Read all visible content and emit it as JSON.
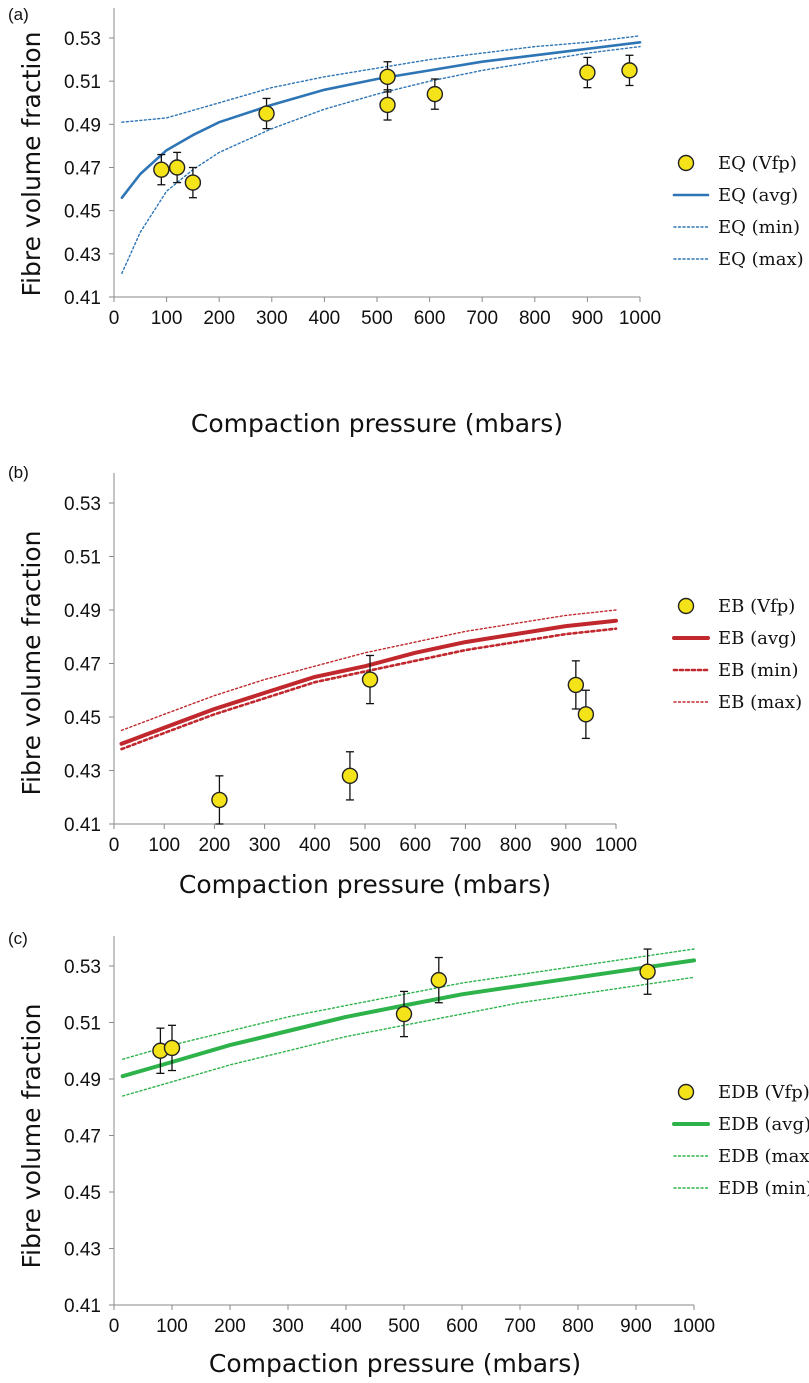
{
  "chart_data": [
    {
      "type": "scatter",
      "panel_label": "(a)",
      "xlabel": "Compaction pressure (mbars)",
      "ylabel": "Fibre volume fraction",
      "xlim": [
        0,
        1000
      ],
      "ylim": [
        0.41,
        0.53
      ],
      "x_ticks": [
        0,
        100,
        200,
        300,
        400,
        500,
        600,
        700,
        800,
        900,
        1000
      ],
      "y_ticks": [
        0.41,
        0.43,
        0.45,
        0.47,
        0.49,
        0.51,
        0.53
      ],
      "y_tick_labels": [
        "0.41",
        "0.43",
        "0.45",
        "0.47",
        "0.49",
        "0.51",
        "0.53"
      ],
      "legend_placement": "right",
      "grid": false,
      "points": {
        "name": "EQ (Vfp)",
        "x": [
          90,
          120,
          150,
          290,
          520,
          520,
          610,
          900,
          980
        ],
        "y": [
          0.469,
          0.47,
          0.463,
          0.495,
          0.512,
          0.499,
          0.504,
          0.514,
          0.515
        ],
        "err": [
          0.007,
          0.007,
          0.007,
          0.007,
          0.007,
          0.007,
          0.007,
          0.007,
          0.007
        ]
      },
      "series": [
        {
          "name": "EQ (avg)",
          "style": "solid",
          "color": "#2E75B6",
          "x": [
            15,
            50,
            100,
            150,
            200,
            300,
            400,
            500,
            600,
            700,
            800,
            900,
            1000
          ],
          "y": [
            0.456,
            0.467,
            0.478,
            0.485,
            0.491,
            0.499,
            0.506,
            0.511,
            0.515,
            0.519,
            0.522,
            0.525,
            0.528
          ]
        },
        {
          "name": "EQ (min)",
          "style": "dotted",
          "color": "#2E75B6",
          "x": [
            15,
            50,
            100,
            150,
            200,
            300,
            400,
            500,
            600,
            700,
            800,
            900,
            1000
          ],
          "y": [
            0.421,
            0.44,
            0.459,
            0.469,
            0.477,
            0.488,
            0.497,
            0.504,
            0.51,
            0.515,
            0.519,
            0.523,
            0.526
          ]
        },
        {
          "name": "EQ (max)",
          "style": "dotted",
          "color": "#2E75B6",
          "x": [
            15,
            100,
            200,
            300,
            400,
            500,
            600,
            700,
            800,
            900,
            1000
          ],
          "y": [
            0.491,
            0.493,
            0.5,
            0.507,
            0.512,
            0.516,
            0.52,
            0.523,
            0.526,
            0.528,
            0.531
          ]
        }
      ]
    },
    {
      "type": "scatter",
      "panel_label": "(b)",
      "xlabel": "Compaction pressure (mbars)",
      "ylabel": "Fibre volume fraction",
      "xlim": [
        0,
        1000
      ],
      "ylim": [
        0.41,
        0.53
      ],
      "x_ticks": [
        0,
        100,
        200,
        300,
        400,
        500,
        600,
        700,
        800,
        900,
        1000
      ],
      "y_ticks": [
        0.41,
        0.43,
        0.45,
        0.47,
        0.49,
        0.51,
        0.53
      ],
      "y_tick_labels": [
        "0.41",
        "0.43",
        "0.45",
        "0.47",
        "0.49",
        "0.51",
        "0.53"
      ],
      "legend_placement": "right",
      "grid": false,
      "points": {
        "name": "EB (Vfp)",
        "x": [
          210,
          470,
          510,
          920,
          940
        ],
        "y": [
          0.419,
          0.428,
          0.464,
          0.462,
          0.451
        ],
        "err": [
          0.009,
          0.009,
          0.009,
          0.009,
          0.009
        ]
      },
      "series": [
        {
          "name": "EB (avg)",
          "style": "solid",
          "color": "#C0282D",
          "x": [
            15,
            100,
            200,
            300,
            400,
            500,
            600,
            700,
            800,
            900,
            1000
          ],
          "y": [
            0.44,
            0.446,
            0.453,
            0.459,
            0.465,
            0.469,
            0.474,
            0.478,
            0.481,
            0.484,
            0.486
          ]
        },
        {
          "name": "EB (min)",
          "style": "dotted-bold",
          "color": "#C0282D",
          "x": [
            15,
            100,
            200,
            300,
            400,
            500,
            600,
            700,
            800,
            900,
            1000
          ],
          "y": [
            0.438,
            0.444,
            0.451,
            0.457,
            0.463,
            0.467,
            0.471,
            0.475,
            0.478,
            0.481,
            0.483
          ]
        },
        {
          "name": "EB (max)",
          "style": "dotted",
          "color": "#C0282D",
          "x": [
            15,
            100,
            200,
            300,
            400,
            500,
            600,
            700,
            800,
            900,
            1000
          ],
          "y": [
            0.445,
            0.451,
            0.458,
            0.464,
            0.469,
            0.474,
            0.478,
            0.482,
            0.485,
            0.488,
            0.49
          ]
        }
      ]
    },
    {
      "type": "scatter",
      "panel_label": "(c)",
      "xlabel": "Compaction pressure (mbars)",
      "ylabel": "Fibre volume fraction",
      "xlim": [
        0,
        1000
      ],
      "ylim": [
        0.41,
        0.53
      ],
      "x_ticks": [
        0,
        100,
        200,
        300,
        400,
        500,
        600,
        700,
        800,
        900,
        1000
      ],
      "y_ticks": [
        0.41,
        0.43,
        0.45,
        0.47,
        0.49,
        0.51,
        0.53
      ],
      "y_tick_labels": [
        "0.41",
        "0.43",
        "0.45",
        "0.47",
        "0.49",
        "0.51",
        "0.53"
      ],
      "legend_placement": "right",
      "grid": false,
      "points": {
        "name": "EDB (Vfp)",
        "x": [
          80,
          100,
          500,
          560,
          920
        ],
        "y": [
          0.5,
          0.501,
          0.513,
          0.525,
          0.528
        ],
        "err": [
          0.008,
          0.008,
          0.008,
          0.008,
          0.008
        ]
      },
      "series": [
        {
          "name": "EDB (avg)",
          "style": "solid",
          "color": "#2DB34A",
          "x": [
            15,
            100,
            200,
            300,
            400,
            500,
            600,
            700,
            800,
            900,
            1000
          ],
          "y": [
            0.491,
            0.496,
            0.502,
            0.507,
            0.512,
            0.516,
            0.52,
            0.523,
            0.526,
            0.529,
            0.532
          ]
        },
        {
          "name": "EDB (max)",
          "style": "dotted",
          "color": "#2DB34A",
          "x": [
            15,
            100,
            200,
            300,
            400,
            500,
            600,
            700,
            800,
            900,
            1000
          ],
          "y": [
            0.497,
            0.502,
            0.507,
            0.512,
            0.516,
            0.52,
            0.524,
            0.527,
            0.53,
            0.533,
            0.536
          ]
        },
        {
          "name": "EDB (min)",
          "style": "dotted",
          "color": "#2DB34A",
          "x": [
            15,
            100,
            200,
            300,
            400,
            500,
            600,
            700,
            800,
            900,
            1000
          ],
          "y": [
            0.484,
            0.489,
            0.495,
            0.5,
            0.505,
            0.509,
            0.513,
            0.517,
            0.52,
            0.523,
            0.526
          ]
        }
      ]
    }
  ]
}
